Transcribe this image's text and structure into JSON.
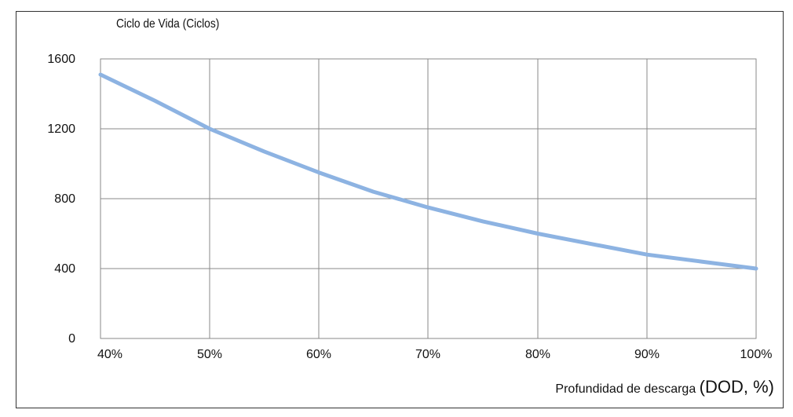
{
  "chart_data": {
    "type": "line",
    "title": "",
    "ylabel": "Ciclo de Vida (Ciclos)",
    "xlabel": "Profundidad de descarga",
    "xlabel_suffix": "(DOD, %)",
    "x": [
      40,
      50,
      60,
      70,
      80,
      90,
      100
    ],
    "x_tick_labels": [
      "40%",
      "50%",
      "60%",
      "70%",
      "80%",
      "90%",
      "100%"
    ],
    "y_ticks": [
      0,
      400,
      800,
      1200,
      1600
    ],
    "y_tick_labels": [
      "0",
      "400",
      "800",
      "1200",
      "1600"
    ],
    "ylim": [
      0,
      1600
    ],
    "grid": true,
    "series": [
      {
        "color": "#8db3e2",
        "points": [
          [
            40,
            1510
          ],
          [
            45,
            1360
          ],
          [
            50,
            1200
          ],
          [
            55,
            1070
          ],
          [
            60,
            950
          ],
          [
            65,
            840
          ],
          [
            70,
            750
          ],
          [
            75,
            670
          ],
          [
            80,
            600
          ],
          [
            85,
            540
          ],
          [
            90,
            480
          ],
          [
            95,
            440
          ],
          [
            100,
            400
          ]
        ]
      }
    ]
  }
}
